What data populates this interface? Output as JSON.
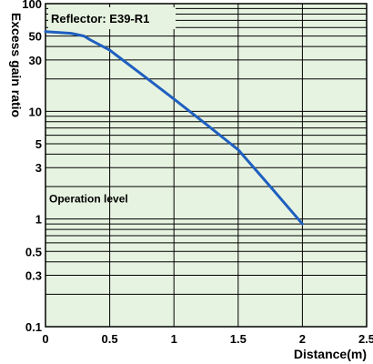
{
  "chart_data": {
    "type": "line",
    "annotation_title": "Reflector: E39-R1",
    "annotation_level": "Operation level",
    "xlabel": "Distance(m)",
    "ylabel": "Excess gain ratio",
    "xlim": [
      0,
      2.5
    ],
    "ylim": [
      0.1,
      100
    ],
    "yscale": "log",
    "grid": true,
    "legend": "none",
    "x_ticks": [
      0,
      0.5,
      1,
      1.5,
      2,
      2.5
    ],
    "x_tick_labels": [
      "0",
      "0.5",
      "1",
      "1.5",
      "2",
      "2.5"
    ],
    "y_ticks": [
      0.1,
      0.3,
      0.5,
      1,
      3,
      5,
      10,
      30,
      50,
      100
    ],
    "y_tick_labels": [
      "0.1",
      "0.3",
      "0.5",
      "1",
      "3",
      "5",
      "10",
      "30",
      "50",
      "100"
    ],
    "series": [
      {
        "x": [
          0,
          0.2,
          0.3,
          0.35,
          0.5,
          0.75,
          1.0,
          1.25,
          1.5,
          1.75,
          2.0
        ],
        "y": [
          55,
          53,
          50,
          46,
          37,
          22,
          13,
          7.6,
          4.4,
          2.0,
          0.9
        ],
        "color": "#1f5fbf"
      }
    ],
    "background_color": "#e6f3e0",
    "grid_color": "#000000"
  }
}
